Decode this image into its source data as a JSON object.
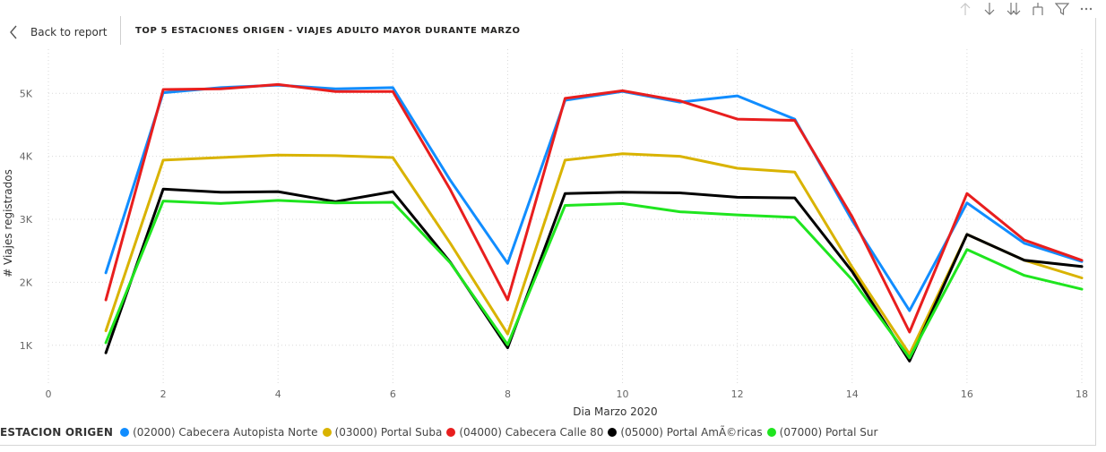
{
  "header": {
    "back_label": "Back to report",
    "title": "TOP 5 ESTACIONES ORIGEN - VIAJES ADULTO MAYOR DURANTE MARZO",
    "tools": [
      "sort-ascending-icon",
      "sort-descending-icon",
      "drill-down-icon",
      "expand-hierarchy-icon",
      "filter-icon",
      "more-options-icon"
    ]
  },
  "legend": {
    "title": "ESTACION ORIGEN"
  },
  "chart_data": {
    "type": "line",
    "xlabel": "Dia Marzo 2020",
    "ylabel": "# Viajes registrados",
    "xlim": [
      0,
      18
    ],
    "ylim": [
      400,
      5700
    ],
    "x_ticks": [
      0,
      2,
      4,
      6,
      8,
      10,
      12,
      14,
      16,
      18
    ],
    "y_ticks": [
      1000,
      2000,
      3000,
      4000,
      5000
    ],
    "y_tick_labels": [
      "1K",
      "2K",
      "3K",
      "4K",
      "5K"
    ],
    "x": [
      1,
      2,
      3,
      4,
      5,
      6,
      7,
      8,
      9,
      10,
      11,
      12,
      13,
      14,
      15,
      16,
      17,
      18
    ],
    "grid": "dotted",
    "legend_position": "bottom-left",
    "series": [
      {
        "name": "(02000) Cabecera Autopista Norte",
        "color": "#118DFF",
        "values": [
          2150,
          5010,
          5090,
          5130,
          5070,
          5090,
          3620,
          2300,
          4890,
          5030,
          4860,
          4960,
          4590,
          2980,
          1550,
          3260,
          2620,
          2330
        ]
      },
      {
        "name": "(03000) Portal Suba",
        "color": "#D9B300",
        "values": [
          1230,
          3940,
          3980,
          4020,
          4010,
          3980,
          2620,
          1180,
          3940,
          4040,
          4000,
          3810,
          3750,
          2240,
          860,
          2760,
          2350,
          2070
        ]
      },
      {
        "name": "(04000) Cabecera Calle 80",
        "color": "#E81E1E",
        "values": [
          1720,
          5060,
          5070,
          5140,
          5030,
          5030,
          3470,
          1720,
          4920,
          5040,
          4880,
          4590,
          4570,
          3040,
          1210,
          3410,
          2670,
          2350
        ]
      },
      {
        "name": "(05000) Portal AmÃ©ricas",
        "color": "#000000",
        "values": [
          880,
          3480,
          3430,
          3440,
          3280,
          3440,
          2320,
          960,
          3410,
          3430,
          3420,
          3350,
          3340,
          2170,
          750,
          2760,
          2350,
          2250
        ]
      },
      {
        "name": "(07000) Portal Sur",
        "color": "#1FE51F",
        "values": [
          1040,
          3290,
          3250,
          3300,
          3260,
          3270,
          2310,
          1010,
          3220,
          3250,
          3120,
          3070,
          3030,
          2040,
          800,
          2520,
          2110,
          1890
        ]
      }
    ]
  }
}
